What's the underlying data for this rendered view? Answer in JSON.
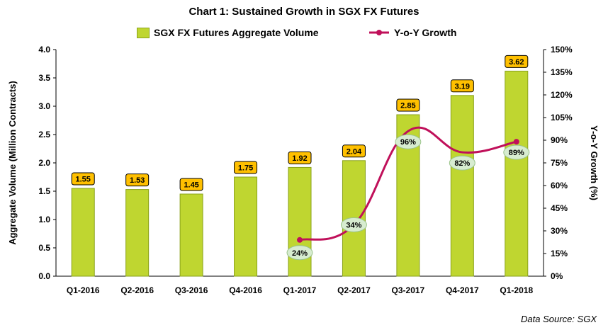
{
  "chart_data": {
    "type": "bar",
    "title": "Chart 1: Sustained Growth in SGX FX Futures",
    "categories": [
      "Q1-2016",
      "Q2-2016",
      "Q3-2016",
      "Q4-2016",
      "Q1-2017",
      "Q2-2017",
      "Q3-2017",
      "Q4-2017",
      "Q1-2018"
    ],
    "series": [
      {
        "name": "SGX FX Futures Aggregate Volume",
        "type": "bar",
        "axis": "left",
        "values": [
          1.55,
          1.53,
          1.45,
          1.75,
          1.92,
          2.04,
          2.85,
          3.19,
          3.62
        ],
        "labels": [
          "1.55",
          "1.53",
          "1.45",
          "1.75",
          "1.92",
          "2.04",
          "2.85",
          "3.19",
          "3.62"
        ]
      },
      {
        "name": "Y-o-Y Growth",
        "type": "line",
        "axis": "right",
        "values": [
          null,
          null,
          null,
          null,
          24,
          34,
          96,
          82,
          89
        ],
        "labels": [
          "",
          "",
          "",
          "",
          "24%",
          "34%",
          "96%",
          "82%",
          "89%"
        ]
      }
    ],
    "ylabel": "Aggregate Volume (Million Contracts)",
    "ylabel_right": "Y-o-Y Growth (%)",
    "ylim": [
      0,
      4.0
    ],
    "ylim_right": [
      0,
      150
    ],
    "yticks": [
      "0.0",
      "0.5",
      "1.0",
      "1.5",
      "2.0",
      "2.5",
      "3.0",
      "3.5",
      "4.0"
    ],
    "yticks_right": [
      "0%",
      "15%",
      "30%",
      "45%",
      "60%",
      "75%",
      "90%",
      "105%",
      "120%",
      "135%",
      "150%"
    ],
    "legend_position": "top-center",
    "grid": false
  },
  "source_note": "Data Source: SGX",
  "colors": {
    "bar_fill": "#bfd630",
    "bar_stroke": "#8aa21a",
    "bar_label_fill": "#ffc000",
    "line": "#c0105a",
    "growth_label_fill": "#d7ecd0",
    "growth_label_stroke": "#9bc48b"
  }
}
